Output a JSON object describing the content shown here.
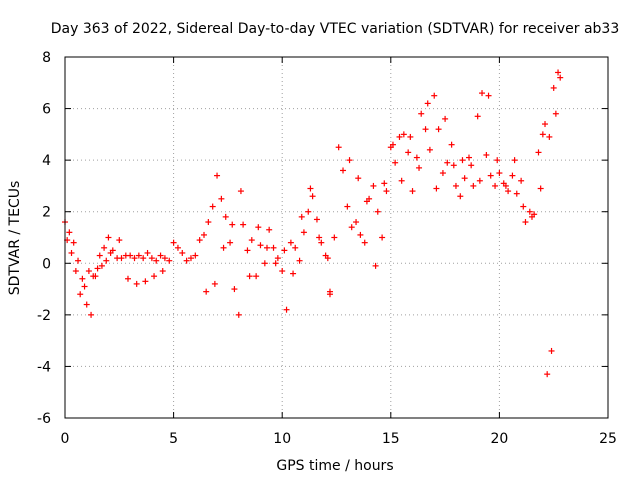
{
  "chart_data": {
    "type": "scatter",
    "title": "Day 363 of 2022, Sidereal Day-to-day VTEC variation (SDTVAR) for receiver ab33",
    "xlabel": "GPS time / hours",
    "ylabel": "SDTVAR / TECUs",
    "xlim": [
      0,
      25
    ],
    "ylim": [
      -6,
      8
    ],
    "xticks": [
      "0",
      "5",
      "10",
      "15",
      "20",
      "25"
    ],
    "yticks": [
      "-6",
      "-4",
      "-2",
      "0",
      "2",
      "4",
      "6",
      "8"
    ],
    "grid": true,
    "marker": "+",
    "color": "#ff0000",
    "series": [
      {
        "name": "SDTVAR",
        "x": [
          0.0,
          0.2,
          0.4,
          0.6,
          0.8,
          1.0,
          1.2,
          1.4,
          1.6,
          1.8,
          2.0,
          2.2,
          2.4,
          2.6,
          2.8,
          3.0,
          3.2,
          3.4,
          3.6,
          3.8,
          4.0,
          4.2,
          4.4,
          4.6,
          4.8,
          5.0,
          5.2,
          5.4,
          5.6,
          5.8,
          6.0,
          6.2,
          6.4,
          6.6,
          6.8,
          7.0,
          7.2,
          7.4,
          7.6,
          7.8,
          8.0,
          8.2,
          8.4,
          8.6,
          8.8,
          9.0,
          9.2,
          9.4,
          9.6,
          9.8,
          10.0,
          10.2,
          10.4,
          10.6,
          10.8,
          11.0,
          11.2,
          11.4,
          11.6,
          11.8,
          12.0,
          12.2,
          12.4,
          12.6,
          12.8,
          13.0,
          13.2,
          13.4,
          13.6,
          13.8,
          14.0,
          14.2,
          14.4,
          14.6,
          14.8,
          15.0,
          15.2,
          15.4,
          15.6,
          15.8,
          16.0,
          16.2,
          16.4,
          16.6,
          16.8,
          17.0,
          17.2,
          17.4,
          17.6,
          17.8,
          18.0,
          18.2,
          18.4,
          18.6,
          18.8,
          19.0,
          19.2,
          19.4,
          19.6,
          19.8,
          20.0,
          20.2,
          20.4,
          20.6,
          20.8,
          21.0,
          21.2,
          21.4,
          21.6,
          21.8,
          22.0,
          22.2,
          22.4,
          22.6,
          22.8,
          0.1,
          0.3,
          0.5,
          0.7,
          0.9,
          1.1,
          1.3,
          1.5,
          1.7,
          1.9,
          2.1,
          2.5,
          2.9,
          3.3,
          3.7,
          4.1,
          4.5,
          6.5,
          6.9,
          7.3,
          7.7,
          8.1,
          8.5,
          8.9,
          9.3,
          9.7,
          10.1,
          10.5,
          10.9,
          11.3,
          11.7,
          12.1,
          12.2,
          13.1,
          13.5,
          13.9,
          14.3,
          14.7,
          15.1,
          15.5,
          15.9,
          16.3,
          16.7,
          17.1,
          17.5,
          17.9,
          18.3,
          18.7,
          19.1,
          19.5,
          19.9,
          20.3,
          20.7,
          21.1,
          21.5,
          21.9,
          22.1,
          22.3,
          22.5,
          22.7
        ],
        "y": [
          1.6,
          1.2,
          0.8,
          0.1,
          -0.6,
          -1.6,
          -2.0,
          -0.5,
          0.3,
          0.6,
          1.0,
          0.5,
          0.2,
          0.2,
          0.3,
          0.3,
          0.2,
          0.3,
          0.2,
          0.4,
          0.2,
          0.1,
          0.3,
          0.2,
          0.1,
          0.8,
          0.6,
          0.4,
          0.1,
          0.2,
          0.3,
          0.9,
          1.1,
          1.6,
          2.2,
          3.4,
          2.5,
          1.8,
          0.8,
          -1.0,
          -2.0,
          1.5,
          0.5,
          0.9,
          -0.5,
          0.7,
          0.0,
          1.3,
          0.6,
          0.2,
          -0.3,
          -1.8,
          0.8,
          0.6,
          0.1,
          1.2,
          2.0,
          2.6,
          1.7,
          0.8,
          0.3,
          -1.1,
          1.0,
          4.5,
          3.6,
          2.2,
          1.4,
          1.6,
          1.1,
          0.8,
          2.5,
          3.0,
          2.0,
          1.0,
          2.8,
          4.5,
          3.9,
          4.9,
          5.0,
          4.3,
          2.8,
          4.1,
          5.8,
          5.2,
          4.4,
          6.5,
          5.2,
          3.5,
          3.9,
          4.6,
          3.0,
          2.6,
          3.3,
          4.1,
          3.0,
          5.7,
          6.6,
          4.2,
          3.4,
          3.0,
          3.5,
          3.1,
          2.8,
          3.4,
          2.7,
          3.2,
          1.6,
          2.0,
          1.9,
          4.3,
          5.0,
          -4.3,
          -3.4,
          5.8,
          7.2,
          0.9,
          0.4,
          -0.3,
          -1.2,
          -0.9,
          -0.3,
          -0.5,
          -0.2,
          -0.1,
          0.1,
          0.4,
          0.9,
          -0.6,
          -0.8,
          -0.7,
          -0.5,
          -0.3,
          -1.1,
          -0.8,
          0.6,
          1.5,
          2.8,
          -0.5,
          1.4,
          0.6,
          0.0,
          0.5,
          -0.4,
          1.8,
          2.9,
          1.0,
          0.2,
          -1.2,
          4.0,
          3.3,
          2.4,
          -0.1,
          3.1,
          4.6,
          3.2,
          4.9,
          3.7,
          6.2,
          2.9,
          5.6,
          3.8,
          4.0,
          3.8,
          3.2,
          6.5,
          4.0,
          3.0,
          4.0,
          2.2,
          1.8,
          2.9,
          5.4,
          4.9,
          6.8,
          7.4
        ]
      }
    ]
  }
}
